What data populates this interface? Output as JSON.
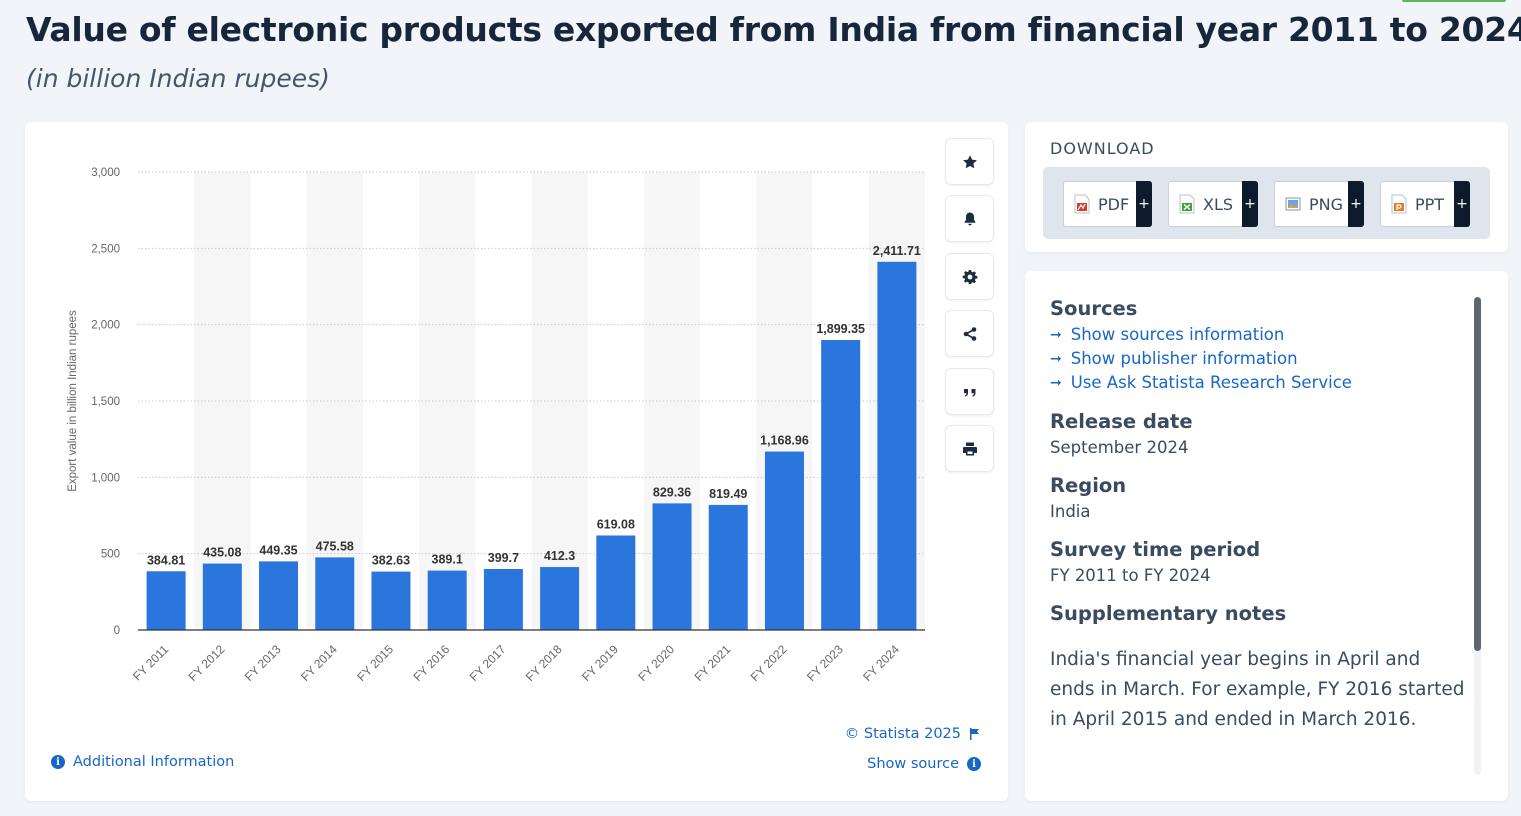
{
  "page": {
    "title": "Value of electronic products exported from India from financial year 2011 to 2024",
    "subtitle": "(in billion Indian rupees)"
  },
  "colors": {
    "bar": "#2a76dd",
    "link": "#1767c6",
    "text": "#1a2b3c"
  },
  "toolbar": {
    "icons": [
      "star-icon",
      "bell-icon",
      "gear-icon",
      "share-icon",
      "quote-icon",
      "print-icon"
    ]
  },
  "chart_data": {
    "type": "bar",
    "categories": [
      "FY 2011",
      "FY 2012",
      "FY 2013",
      "FY 2014",
      "FY 2015",
      "FY 2016",
      "FY 2017",
      "FY 2018",
      "FY 2019",
      "FY 2020",
      "FY 2021",
      "FY 2022",
      "FY 2023",
      "FY 2024"
    ],
    "values": [
      384.81,
      435.08,
      449.35,
      475.58,
      382.63,
      389.1,
      399.7,
      412.3,
      619.08,
      829.36,
      819.49,
      1168.96,
      1899.35,
      2411.71
    ],
    "value_labels": [
      "384.81",
      "435.08",
      "449.35",
      "475.58",
      "382.63",
      "389.1",
      "399.7",
      "412.3",
      "619.08",
      "829.36",
      "819.49",
      "1,168.96",
      "1,899.35",
      "2,411.71"
    ],
    "ylabel": "Export value in billion Indian rupees",
    "xlabel": "",
    "ylim": [
      0,
      3000
    ],
    "yticks": [
      0,
      500,
      1000,
      1500,
      2000,
      2500,
      3000
    ],
    "ytick_labels": [
      "0",
      "500",
      "1,000",
      "1,500",
      "2,000",
      "2,500",
      "3,000"
    ],
    "grid": true,
    "legend": "none"
  },
  "chart_footer": {
    "credit": "© Statista 2025",
    "show_source": "Show source",
    "additional_info": "Additional Information"
  },
  "download": {
    "label": "DOWNLOAD",
    "buttons": [
      {
        "label": "PDF",
        "plus": "+"
      },
      {
        "label": "XLS",
        "plus": "+"
      },
      {
        "label": "PNG",
        "plus": "+"
      },
      {
        "label": "PPT",
        "plus": "+"
      }
    ]
  },
  "info": {
    "sources_heading": "Sources",
    "links": [
      "Show sources information",
      "Show publisher information",
      "Use Ask Statista Research Service"
    ],
    "release_heading": "Release date",
    "release_value": "September 2024",
    "region_heading": "Region",
    "region_value": "India",
    "survey_heading": "Survey time period",
    "survey_value": "FY 2011 to FY 2024",
    "notes_heading": "Supplementary notes",
    "notes_text": "India's financial year begins in April and ends in March. For example, FY 2016 started in April 2015 and ended in March 2016."
  }
}
